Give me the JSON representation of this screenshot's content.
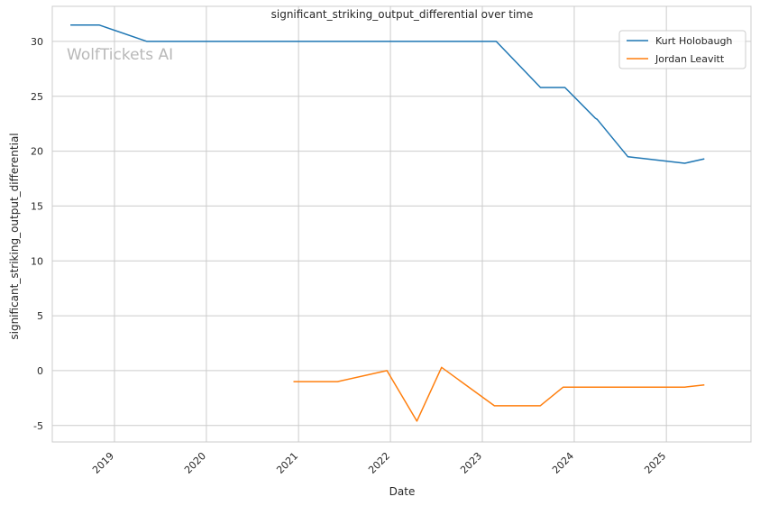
{
  "chart_data": {
    "type": "line",
    "title": "significant_striking_output_differential over time",
    "xlabel": "Date",
    "ylabel": "significant_striking_output_differential",
    "watermark": "WolfTickets AI",
    "x_ticks": [
      "2019",
      "2020",
      "2021",
      "2022",
      "2023",
      "2024",
      "2025"
    ],
    "y_ticks": [
      -5,
      0,
      5,
      10,
      15,
      20,
      25,
      30
    ],
    "xlim": [
      "2018-04-29",
      "2025-12-03"
    ],
    "ylim": [
      -6.5,
      33.2
    ],
    "grid": true,
    "legend_position": "top-right",
    "series": [
      {
        "name": "Kurt Holobaugh",
        "color": "#1f77b4",
        "points": [
          [
            "2018-07-10",
            31.5
          ],
          [
            "2018-11-01",
            31.5
          ],
          [
            "2019-05-10",
            30.0
          ],
          [
            "2023-02-25",
            30.0
          ],
          [
            "2023-08-20",
            25.8
          ],
          [
            "2023-11-25",
            25.8
          ],
          [
            "2024-03-25",
            23.0
          ],
          [
            "2024-04-01",
            22.9
          ],
          [
            "2024-08-01",
            19.5
          ],
          [
            "2025-03-15",
            18.9
          ],
          [
            "2025-06-01",
            19.3
          ]
        ]
      },
      {
        "name": "Jordan Leavitt",
        "color": "#ff7f0e",
        "points": [
          [
            "2020-12-12",
            -1.0
          ],
          [
            "2021-06-05",
            -1.0
          ],
          [
            "2021-12-18",
            0.0
          ],
          [
            "2022-04-16",
            -4.6
          ],
          [
            "2022-07-23",
            0.3
          ],
          [
            "2023-02-18",
            -3.2
          ],
          [
            "2023-08-19",
            -3.2
          ],
          [
            "2023-11-18",
            -1.5
          ],
          [
            "2025-03-15",
            -1.5
          ],
          [
            "2025-06-01",
            -1.3
          ]
        ]
      }
    ]
  }
}
